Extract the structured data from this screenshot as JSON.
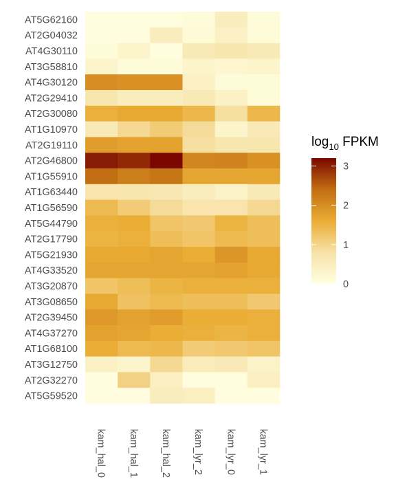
{
  "chart_data": {
    "type": "heatmap",
    "title": "",
    "xlabel": "",
    "ylabel": "",
    "columns": [
      "kam_hal_0",
      "kam_hal_1",
      "kam_hal_2",
      "kam_lyr_2",
      "kam_lyr_0",
      "kam_lyr_1"
    ],
    "rows": [
      "AT5G62160",
      "AT2G04032",
      "AT4G30110",
      "AT3G58810",
      "AT4G30120",
      "AT2G29410",
      "AT2G30080",
      "AT1G10970",
      "AT2G19110",
      "AT2G46800",
      "AT1G55910",
      "AT1G63440",
      "AT1G56590",
      "AT5G44790",
      "AT2G17790",
      "AT5G21930",
      "AT4G33520",
      "AT3G20870",
      "AT3G08650",
      "AT2G39450",
      "AT4G37270",
      "AT1G68100",
      "AT3G12750",
      "AT2G32270",
      "AT5G59520"
    ],
    "values": [
      [
        0.05,
        0.05,
        0.05,
        0.1,
        0.5,
        0.1
      ],
      [
        0.05,
        0.05,
        0.5,
        0.15,
        0.4,
        0.1
      ],
      [
        0.1,
        0.3,
        0.05,
        0.6,
        0.7,
        0.6
      ],
      [
        0.3,
        0.1,
        0.1,
        0.3,
        0.25,
        0.3
      ],
      [
        2.0,
        1.95,
        1.95,
        0.4,
        0.1,
        0.1
      ],
      [
        0.7,
        0.5,
        0.5,
        0.6,
        0.4,
        0.1
      ],
      [
        1.55,
        1.65,
        1.65,
        1.45,
        0.85,
        1.45
      ],
      [
        0.6,
        0.95,
        1.15,
        0.9,
        0.3,
        0.6
      ],
      [
        1.8,
        1.75,
        1.75,
        0.85,
        0.7,
        0.7
      ],
      [
        3.05,
        2.95,
        3.2,
        2.1,
        2.15,
        1.95
      ],
      [
        2.4,
        2.2,
        2.3,
        1.7,
        1.7,
        1.7
      ],
      [
        0.75,
        0.7,
        0.65,
        0.5,
        0.35,
        0.6
      ],
      [
        1.4,
        1.15,
        0.9,
        0.75,
        0.75,
        0.95
      ],
      [
        1.55,
        1.6,
        1.25,
        1.2,
        1.5,
        1.35
      ],
      [
        1.5,
        1.55,
        1.35,
        1.25,
        1.4,
        1.35
      ],
      [
        1.65,
        1.65,
        1.7,
        1.6,
        1.9,
        1.65
      ],
      [
        1.7,
        1.7,
        1.7,
        1.7,
        1.75,
        1.65
      ],
      [
        1.25,
        1.35,
        1.5,
        1.55,
        1.55,
        1.55
      ],
      [
        1.65,
        1.3,
        1.4,
        1.35,
        1.35,
        1.2
      ],
      [
        1.85,
        1.75,
        1.8,
        1.6,
        1.6,
        1.55
      ],
      [
        1.75,
        1.7,
        1.6,
        1.55,
        1.5,
        1.55
      ],
      [
        1.6,
        1.4,
        1.45,
        1.15,
        1.2,
        1.25
      ],
      [
        0.4,
        0.3,
        0.95,
        0.55,
        0.6,
        0.35
      ],
      [
        0.05,
        1.05,
        0.45,
        0.05,
        0.05,
        0.45
      ],
      [
        0.05,
        0.05,
        0.5,
        0.45,
        0.05,
        0.05
      ]
    ],
    "legend": {
      "title": "log",
      "title_sub": "10",
      "title_suffix": " FPKM",
      "ticks": [
        0,
        1,
        2,
        3
      ],
      "range": [
        0,
        3.2
      ],
      "colors": [
        "#FFFFE0",
        "#F7E2A8",
        "#EAAD35",
        "#C26E12",
        "#7A0800"
      ],
      "placement": "right"
    }
  }
}
